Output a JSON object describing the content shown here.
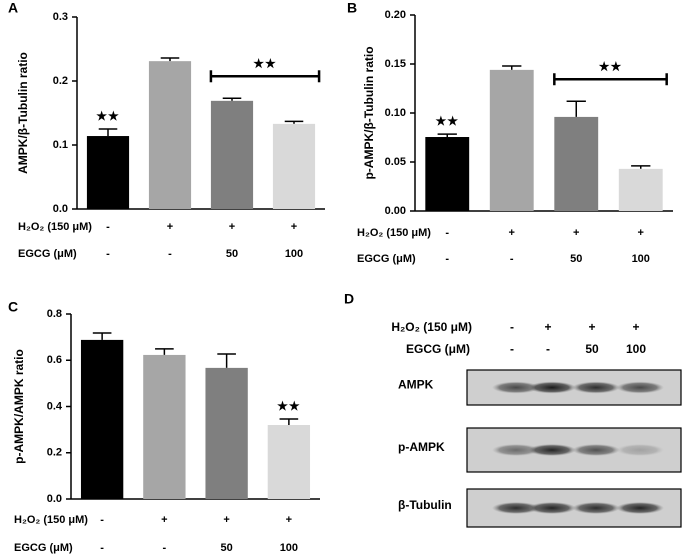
{
  "chart_data": [
    {
      "type": "bar",
      "panel": "A",
      "ylabel": "AMPK/β-Tubulin ratio",
      "values": [
        0.114,
        0.231,
        0.169,
        0.133
      ],
      "errors": [
        0.011,
        0.005,
        0.004,
        0.004
      ],
      "colors": [
        "#000000",
        "#a6a6a6",
        "#7f7f7f",
        "#d9d9d9"
      ],
      "ylim": [
        0,
        0.3
      ],
      "yticks": [
        {
          "value": 0,
          "label": "0.0"
        },
        0.1,
        0.2,
        0.3
      ],
      "conditions": [
        {
          "label": "H₂O₂ (150 μM)",
          "cells": [
            "-",
            "+",
            "+",
            "+"
          ]
        },
        {
          "label": "EGCG (μM)",
          "cells": [
            "-",
            "-",
            "50",
            "100"
          ]
        }
      ],
      "significance": [
        "★★",
        null,
        null,
        null
      ],
      "bracket": {
        "text": "★★",
        "covers": [
          false,
          false,
          true,
          true
        ]
      }
    },
    {
      "type": "bar",
      "panel": "B",
      "ylabel": "p-AMPK/β-Tubulin ratio",
      "values": [
        0.0755,
        0.144,
        0.096,
        0.043
      ],
      "errors": [
        0.003,
        0.004,
        0.016,
        0.003
      ],
      "colors": [
        "#000000",
        "#a6a6a6",
        "#7f7f7f",
        "#d9d9d9"
      ],
      "ylim": [
        0,
        0.2
      ],
      "yticks": [
        {
          "value": 0,
          "label": "0.00"
        },
        0.05,
        {
          "value": 0.1,
          "label": "0.10"
        },
        0.15,
        {
          "value": 0.2,
          "label": "0.20"
        }
      ],
      "conditions": [
        {
          "label": "H₂O₂ (150 μM)",
          "cells": [
            "-",
            "+",
            "+",
            "+"
          ]
        },
        {
          "label": "EGCG (μM)",
          "cells": [
            "-",
            "-",
            "50",
            "100"
          ]
        }
      ],
      "significance": [
        "★★",
        null,
        null,
        null
      ],
      "bracket": {
        "text": "★★",
        "covers": [
          false,
          false,
          true,
          true
        ]
      }
    },
    {
      "type": "bar",
      "panel": "C",
      "ylabel": "p-AMPK/AMPK ratio",
      "values": [
        0.688,
        0.623,
        0.567,
        0.32
      ],
      "errors": [
        0.03,
        0.026,
        0.06,
        0.026
      ],
      "colors": [
        "#000000",
        "#a6a6a6",
        "#7f7f7f",
        "#d9d9d9"
      ],
      "ylim": [
        0,
        0.8
      ],
      "yticks": [
        {
          "value": 0,
          "label": "0.0"
        },
        0.2,
        0.4,
        0.6,
        0.8
      ],
      "conditions": [
        {
          "label": "H₂O₂ (150 μM)",
          "cells": [
            "-",
            "+",
            "+",
            "+"
          ]
        },
        {
          "label": "EGCG (μM)",
          "cells": [
            "-",
            "-",
            "50",
            "100"
          ]
        }
      ],
      "significance": [
        null,
        null,
        null,
        "★★"
      ]
    },
    {
      "type": "blot",
      "panel": "D",
      "conditions": [
        {
          "label": "H₂O₂ (150 μM)",
          "cells": [
            "-",
            "+",
            "+",
            "+"
          ]
        },
        {
          "label": "EGCG (μM)",
          "cells": [
            "-",
            "-",
            "50",
            "100"
          ]
        }
      ],
      "bands": [
        "AMPK",
        "p-AMPK",
        "β-Tubulin"
      ]
    }
  ]
}
